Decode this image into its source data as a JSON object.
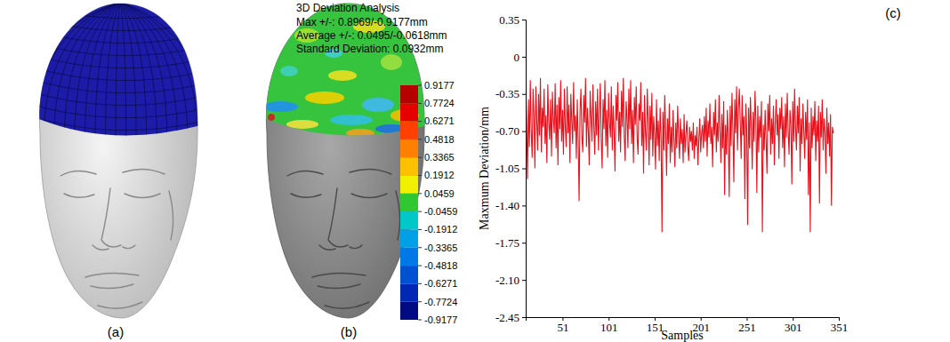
{
  "chart_data": {
    "type": "line",
    "x_label": "Samples",
    "y_label": "Maxmum Deviation/mm",
    "color": "#e8101a",
    "grid": false,
    "xlim": [
      11,
      351
    ],
    "ylim": [
      -2.45,
      0.35
    ],
    "xticks": [
      51,
      101,
      151,
      201,
      251,
      301,
      351
    ],
    "yticks": [
      0.35,
      0,
      -0.35,
      {
        "value": -0.7,
        "label": "-0.70"
      },
      -1.05,
      {
        "value": -1.4,
        "label": "-1.40"
      },
      -1.75,
      {
        "value": -2.1,
        "label": "-2.10"
      },
      -2.45
    ],
    "x": [
      11,
      12,
      13,
      14,
      15,
      16,
      17,
      18,
      19,
      20,
      21,
      22,
      23,
      24,
      25,
      26,
      27,
      28,
      29,
      30,
      31,
      32,
      33,
      34,
      35,
      36,
      37,
      38,
      39,
      40,
      41,
      42,
      43,
      44,
      45,
      46,
      47,
      48,
      49,
      50,
      51,
      52,
      53,
      54,
      55,
      56,
      57,
      58,
      59,
      60,
      61,
      62,
      63,
      64,
      65,
      66,
      67,
      68,
      69,
      70,
      71,
      72,
      73,
      74,
      75,
      76,
      77,
      78,
      79,
      80,
      81,
      82,
      83,
      84,
      85,
      86,
      87,
      88,
      89,
      90,
      91,
      92,
      93,
      94,
      95,
      96,
      97,
      98,
      99,
      100,
      101,
      102,
      103,
      104,
      105,
      106,
      107,
      108,
      109,
      110,
      111,
      112,
      113,
      114,
      115,
      116,
      117,
      118,
      119,
      120,
      121,
      122,
      123,
      124,
      125,
      126,
      127,
      128,
      129,
      130,
      131,
      132,
      133,
      134,
      135,
      136,
      137,
      138,
      139,
      140,
      141,
      142,
      143,
      144,
      145,
      146,
      147,
      148,
      149,
      150,
      151,
      152,
      153,
      154,
      155,
      156,
      157,
      158,
      159,
      160,
      161,
      162,
      163,
      164,
      165,
      166,
      167,
      168,
      169,
      170,
      171,
      172,
      173,
      174,
      175,
      176,
      177,
      178,
      179,
      180,
      181,
      182,
      183,
      184,
      185,
      186,
      187,
      188,
      189,
      190,
      191,
      192,
      193,
      194,
      195,
      196,
      197,
      198,
      199,
      200,
      201,
      202,
      203,
      204,
      205,
      206,
      207,
      208,
      209,
      210,
      211,
      212,
      213,
      214,
      215,
      216,
      217,
      218,
      219,
      220,
      221,
      222,
      223,
      224,
      225,
      226,
      227,
      228,
      229,
      230,
      231,
      232,
      233,
      234,
      235,
      236,
      237,
      238,
      239,
      240,
      241,
      242,
      243,
      244,
      245,
      246,
      247,
      248,
      249,
      250,
      251,
      252,
      253,
      254,
      255,
      256,
      257,
      258,
      259,
      260,
      261,
      262,
      263,
      264,
      265,
      266,
      267,
      268,
      269,
      270,
      271,
      272,
      273,
      274,
      275,
      276,
      277,
      278,
      279,
      280,
      281,
      282,
      283,
      284,
      285,
      286,
      287,
      288,
      289,
      290,
      291,
      292,
      293,
      294,
      295,
      296,
      297,
      298,
      299,
      300,
      301,
      302,
      303,
      304,
      305,
      306,
      307,
      308,
      309,
      310,
      311,
      312,
      313,
      314,
      315,
      316,
      317,
      318,
      319,
      320,
      321,
      322,
      323,
      324,
      325,
      326,
      327,
      328,
      329,
      330,
      331,
      332,
      333,
      334,
      335,
      336,
      337,
      338,
      339,
      340,
      341,
      342,
      343,
      344,
      345
    ],
    "values": [
      -0.25,
      -0.62,
      -1.15,
      -0.4,
      -0.85,
      -0.22,
      -0.7,
      -0.95,
      -0.3,
      -0.55,
      -1.05,
      -0.28,
      -0.6,
      -0.88,
      -0.35,
      -0.74,
      -0.2,
      -0.9,
      -0.48,
      -0.66,
      -0.3,
      -0.82,
      -0.55,
      -1.0,
      -0.26,
      -0.62,
      -0.78,
      -0.4,
      -0.94,
      -0.33,
      -0.58,
      -0.72,
      -0.25,
      -0.86,
      -0.45,
      -1.02,
      -0.38,
      -0.68,
      -0.22,
      -0.8,
      -0.5,
      -0.92,
      -0.3,
      -0.65,
      -0.85,
      -0.28,
      -0.72,
      -0.45,
      -1.0,
      -0.35,
      -0.6,
      -0.82,
      -0.24,
      -0.7,
      -0.55,
      -0.96,
      -0.4,
      -0.78,
      -1.36,
      -0.52,
      -0.3,
      -0.75,
      -0.9,
      -0.36,
      -0.62,
      -0.2,
      -0.85,
      -0.48,
      -0.7,
      -1.02,
      -0.32,
      -0.58,
      -0.8,
      -0.26,
      -0.66,
      -0.92,
      -0.42,
      -0.74,
      -0.3,
      -0.88,
      -0.55,
      -0.25,
      -0.78,
      -1.05,
      -0.4,
      -0.68,
      -0.22,
      -0.84,
      -0.5,
      -0.95,
      -0.34,
      -0.62,
      -0.76,
      -0.28,
      -0.88,
      -0.46,
      -0.7,
      -1.08,
      -0.36,
      -0.6,
      -0.24,
      -0.8,
      -0.52,
      -0.9,
      -0.32,
      -0.66,
      -0.2,
      -0.74,
      -0.98,
      -0.42,
      -0.58,
      -0.86,
      -0.3,
      -0.68,
      -0.22,
      -0.82,
      -0.5,
      -1.0,
      -0.38,
      -0.64,
      -0.28,
      -0.76,
      -0.92,
      -0.44,
      -0.6,
      -0.24,
      -0.84,
      -0.52,
      -1.1,
      -0.36,
      -0.7,
      -0.88,
      -0.3,
      -0.62,
      -1.02,
      -0.46,
      -0.78,
      -0.34,
      -0.94,
      -0.56,
      -0.72,
      -1.06,
      -0.4,
      -0.84,
      -0.6,
      -0.98,
      -0.48,
      -0.76,
      -1.65,
      -0.52,
      -0.88,
      -0.36,
      -0.7,
      -1.12,
      -0.58,
      -0.82,
      -0.44,
      -1.0,
      -0.66,
      -0.9,
      -0.5,
      -0.78,
      -1.04,
      -0.62,
      -0.86,
      -0.46,
      -0.74,
      -0.96,
      -0.58,
      -0.82,
      -0.68,
      -1.0,
      -0.54,
      -0.9,
      -0.72,
      -0.6,
      -0.84,
      -0.98,
      -0.66,
      -0.8,
      -0.7,
      -0.88,
      -0.62,
      -0.96,
      -0.74,
      -0.84,
      -0.66,
      -1.02,
      -0.78,
      -0.58,
      -0.9,
      -0.72,
      -0.64,
      -0.86,
      -0.56,
      -0.8,
      -0.48,
      -0.94,
      -0.6,
      -0.76,
      -0.44,
      -0.82,
      -0.66,
      -1.04,
      -0.52,
      -0.74,
      -0.4,
      -0.9,
      -0.62,
      -0.8,
      -0.36,
      -0.7,
      -1.0,
      -0.54,
      -0.86,
      -0.42,
      -1.3,
      -0.64,
      -0.92,
      -0.5,
      -0.78,
      -1.32,
      -0.46,
      -0.84,
      -0.34,
      -0.68,
      -1.18,
      -0.4,
      -0.72,
      -0.28,
      -0.88,
      -0.5,
      -0.3,
      -0.62,
      -0.96,
      -0.36,
      -0.74,
      -0.56,
      -1.34,
      -0.44,
      -0.7,
      -1.58,
      -0.48,
      -0.86,
      -0.38,
      -0.66,
      -1.06,
      -0.52,
      -0.8,
      -0.32,
      -0.6,
      -1.28,
      -0.46,
      -0.9,
      -0.56,
      -0.76,
      -0.42,
      -1.65,
      -0.64,
      -0.88,
      -0.5,
      -0.78,
      -1.1,
      -0.44,
      -0.7,
      -0.36,
      -0.92,
      -0.58,
      -0.82,
      -0.46,
      -1.02,
      -0.62,
      -0.4,
      -0.74,
      -0.54,
      -0.96,
      -0.48,
      -0.68,
      -0.38,
      -0.86,
      -0.56,
      -1.04,
      -0.44,
      -0.76,
      -0.34,
      -0.7,
      -0.92,
      -0.5,
      -0.64,
      -1.2,
      -0.42,
      -0.8,
      -0.3,
      -0.66,
      -0.88,
      -0.46,
      -0.72,
      -0.38,
      -1.08,
      -0.58,
      -0.82,
      -0.44,
      -0.7,
      -0.96,
      -0.52,
      -0.78,
      -0.4,
      -1.3,
      -0.62,
      -1.65,
      -0.48,
      -0.86,
      -0.56,
      -0.74,
      -0.42,
      -0.98,
      -0.6,
      -0.8,
      -0.46,
      -1.38,
      -0.52,
      -0.76,
      -0.4,
      -0.88,
      -0.58,
      -0.7,
      -1.1,
      -0.48,
      -0.82,
      -0.62,
      -0.94,
      -0.54,
      -1.4,
      -0.66,
      -0.72
    ]
  },
  "figure": {
    "panel_labels": [
      "(a)",
      "(b)",
      "(c)"
    ],
    "deviation_analysis": {
      "title": "3D Deviation Analysis",
      "lines": [
        "Max +/-: 0.8969/-0.9177mm",
        "Average +/-: 0.0495/-0.0618mm",
        "Standard Deviation: 0.0932mm"
      ]
    },
    "color_bar": {
      "ticks": [
        0.9177,
        0.7724,
        0.6271,
        0.4818,
        0.3365,
        0.1912,
        0.0459,
        -0.0459,
        -0.1912,
        -0.3365,
        -0.4818,
        -0.6271,
        -0.7724,
        -0.9177
      ],
      "colors": [
        "#b40000",
        "#e60000",
        "#ff4000",
        "#ff8000",
        "#ffc000",
        "#f0f000",
        "#30c830",
        "#00c8c8",
        "#00a0e6",
        "#0078e6",
        "#0050d2",
        "#0028b4",
        "#000a82"
      ]
    }
  }
}
